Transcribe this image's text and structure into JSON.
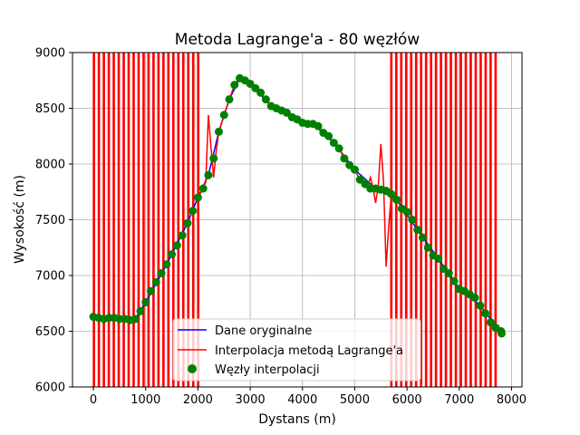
{
  "chart_data": {
    "type": "line",
    "title": "Metoda Lagrange'a - 80 węzłów",
    "xlabel": "Dystans (m)",
    "ylabel": "Wysokość (m)",
    "xlim": [
      -400,
      8200
    ],
    "ylim": [
      6000,
      9000
    ],
    "xticks": [
      0,
      1000,
      2000,
      3000,
      4000,
      5000,
      6000,
      7000,
      8000
    ],
    "yticks": [
      6000,
      6500,
      7000,
      7500,
      8000,
      8500,
      9000
    ],
    "grid": true,
    "legend_position": "bottom-center",
    "colors": {
      "original": "#0000ff",
      "interpolation": "#ff0000",
      "nodes": "#008000"
    },
    "nodes": {
      "x": [
        0,
        100,
        200,
        300,
        400,
        500,
        600,
        700,
        800,
        900,
        1000,
        1100,
        1200,
        1300,
        1400,
        1500,
        1600,
        1700,
        1800,
        1900,
        2000,
        2100,
        2200,
        2300,
        2400,
        2500,
        2600,
        2700,
        2800,
        2900,
        3000,
        3100,
        3200,
        3300,
        3400,
        3500,
        3600,
        3700,
        3800,
        3900,
        4000,
        4100,
        4200,
        4300,
        4400,
        4500,
        4600,
        4700,
        4800,
        4900,
        5000,
        5100,
        5200,
        5300,
        5400,
        5500,
        5600,
        5700,
        5800,
        5900,
        6000,
        6100,
        6200,
        6300,
        6400,
        6500,
        6600,
        6700,
        6800,
        6900,
        7000,
        7100,
        7200,
        7300,
        7400,
        7500,
        7600,
        7700,
        7800,
        7810
      ],
      "y": [
        6630,
        6620,
        6610,
        6620,
        6620,
        6610,
        6610,
        6600,
        6610,
        6680,
        6760,
        6860,
        6940,
        7020,
        7100,
        7190,
        7270,
        7360,
        7470,
        7580,
        7700,
        7780,
        7900,
        8050,
        8290,
        8440,
        8580,
        8710,
        8770,
        8750,
        8720,
        8680,
        8640,
        8580,
        8520,
        8500,
        8480,
        8460,
        8420,
        8400,
        8370,
        8360,
        8360,
        8340,
        8280,
        8250,
        8190,
        8140,
        8050,
        7990,
        7950,
        7860,
        7820,
        7780,
        7780,
        7770,
        7760,
        7730,
        7680,
        7600,
        7570,
        7500,
        7410,
        7340,
        7250,
        7180,
        7150,
        7060,
        7020,
        6950,
        6880,
        6860,
        6830,
        6800,
        6730,
        6660,
        6580,
        6530,
        6500,
        6480
      ]
    },
    "original": {
      "x": [
        0,
        400,
        800,
        1000,
        1400,
        1800,
        2000,
        2200,
        2400,
        2600,
        2800,
        3000,
        3400,
        3800,
        4200,
        4600,
        5000,
        5400,
        5800,
        6200,
        6600,
        7000,
        7400,
        7810
      ],
      "y": [
        6630,
        6620,
        6610,
        6760,
        7100,
        7470,
        7700,
        7900,
        8290,
        8580,
        8770,
        8720,
        8520,
        8420,
        8360,
        8190,
        7950,
        7780,
        7680,
        7410,
        7150,
        6880,
        6730,
        6480
      ]
    },
    "interpolation_wiggle": {
      "x": [
        2000,
        2050,
        2100,
        2150,
        2200,
        2250,
        2300,
        2350,
        2400,
        5200,
        5250,
        5300,
        5350,
        5400,
        5450,
        5500,
        5550,
        5600,
        5650,
        5700
      ],
      "y": [
        7700,
        7740,
        7780,
        7840,
        8440,
        8150,
        7880,
        8120,
        8290,
        7830,
        7800,
        7880,
        7790,
        7650,
        7800,
        8180,
        7850,
        7080,
        7440,
        7730
      ]
    },
    "legend": [
      "Dane oryginalne",
      "Interpolacja metodą Lagrange'a",
      "Węzły interpolacji"
    ]
  }
}
